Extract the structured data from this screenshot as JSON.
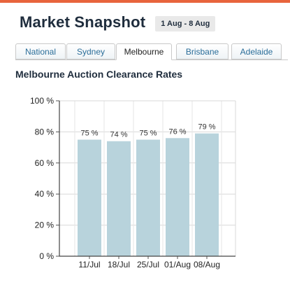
{
  "header": {
    "title": "Market Snapshot",
    "date_range": "1 Aug - 8 Aug"
  },
  "tabs": [
    {
      "label": "National",
      "active": false
    },
    {
      "label": "Sydney",
      "active": false
    },
    {
      "label": "Melbourne",
      "active": true
    },
    {
      "label": "Brisbane",
      "active": false
    },
    {
      "label": "Adelaide",
      "active": false
    }
  ],
  "colors": {
    "accent": "#e8643c",
    "bar": "#b8d3dc",
    "tab_text": "#2a6d99"
  },
  "chart_data": {
    "type": "bar",
    "title": "Melbourne Auction Clearance Rates",
    "categories": [
      "11/Jul",
      "18/Jul",
      "25/Jul",
      "01/Aug",
      "08/Aug"
    ],
    "values": [
      75,
      74,
      75,
      76,
      79
    ],
    "data_labels": [
      "75 %",
      "74 %",
      "75 %",
      "76 %",
      "79 %"
    ],
    "y_tick_values": [
      0,
      20,
      40,
      60,
      80,
      100
    ],
    "y_tick_labels": [
      "0 %",
      "20 %",
      "40 %",
      "60 %",
      "80 %",
      "100 %"
    ],
    "ylim": [
      0,
      100
    ],
    "xlabel": "",
    "ylabel": "",
    "grid": true,
    "legend": "none"
  }
}
